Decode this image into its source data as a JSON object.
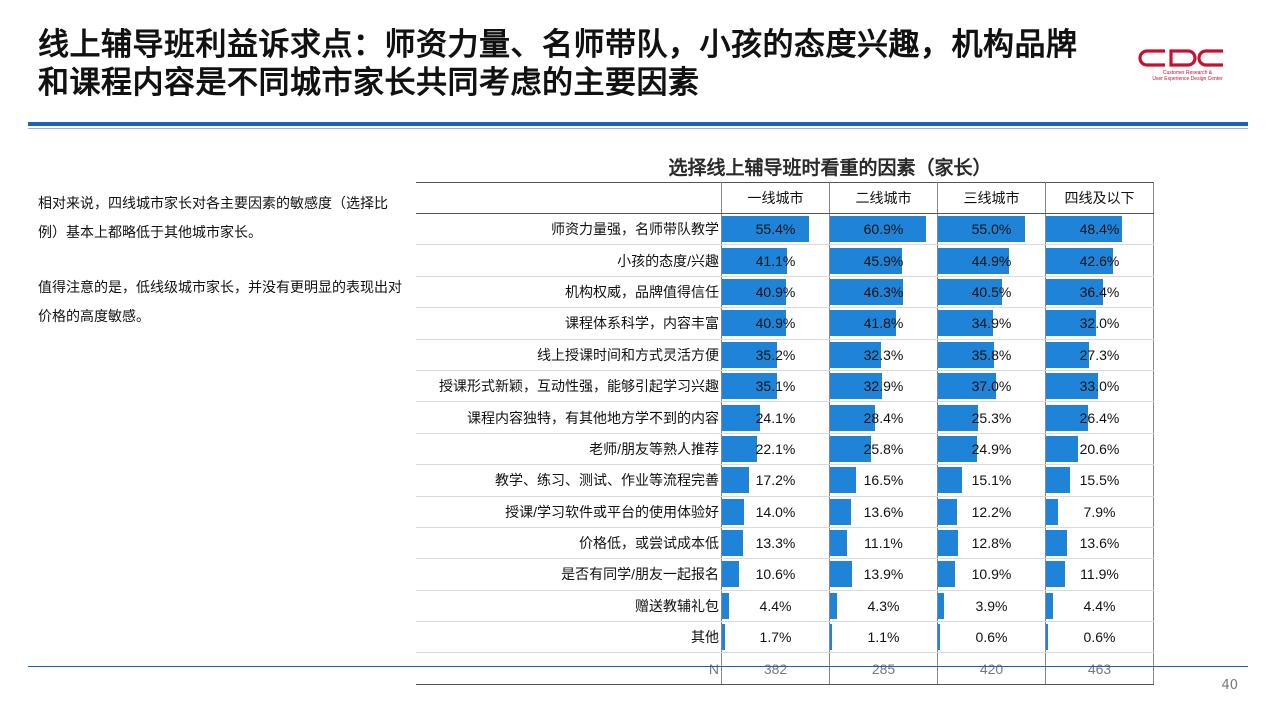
{
  "slide": {
    "title_line1": "线上辅导班利益诉求点：师资力量、名师带队，小孩的态度兴趣，机构品牌",
    "title_line2": "和课程内容是不同城市家长共同考虑的主要因素",
    "logo_text": "CDC",
    "logo_sub1": "Customer Research &",
    "logo_sub2": "User Experience Design Center",
    "note1": "相对来说，四线城市家长对各主要因素的敏感度（选择比例）基本上都略低于其他城市家长。",
    "note2": "值得注意的是，低线级城市家长，并没有更明显的表现出对价格的高度敏感。",
    "page_number": "40",
    "bar_color": "#1f84d8",
    "accent_color": "#1b5fbf",
    "logo_color": "#c8102e"
  },
  "chart_data": {
    "type": "table",
    "title": "选择线上辅导班时看重的因素（家长）",
    "columns": [
      "一线城市",
      "二线城市",
      "三线城市",
      "四线及以下"
    ],
    "rows": [
      {
        "label": "师资力量强，名师带队教学",
        "values": [
          55.4,
          60.9,
          55.0,
          48.4
        ]
      },
      {
        "label": "小孩的态度/兴趣",
        "values": [
          41.1,
          45.9,
          44.9,
          42.6
        ]
      },
      {
        "label": "机构权威，品牌值得信任",
        "values": [
          40.9,
          46.3,
          40.5,
          36.4
        ]
      },
      {
        "label": "课程体系科学，内容丰富",
        "values": [
          40.9,
          41.8,
          34.9,
          32.0
        ]
      },
      {
        "label": "线上授课时间和方式灵活方便",
        "values": [
          35.2,
          32.3,
          35.8,
          27.3
        ]
      },
      {
        "label": "授课形式新颖，互动性强，能够引起学习兴趣",
        "values": [
          35.1,
          32.9,
          37.0,
          33.0
        ]
      },
      {
        "label": "课程内容独特，有其他地方学不到的内容",
        "values": [
          24.1,
          28.4,
          25.3,
          26.4
        ]
      },
      {
        "label": "老师/朋友等熟人推荐",
        "values": [
          22.1,
          25.8,
          24.9,
          20.6
        ]
      },
      {
        "label": "教学、练习、测试、作业等流程完善",
        "values": [
          17.2,
          16.5,
          15.1,
          15.5
        ]
      },
      {
        "label": "授课/学习软件或平台的使用体验好",
        "values": [
          14.0,
          13.6,
          12.2,
          7.9
        ]
      },
      {
        "label": "价格低，或尝试成本低",
        "values": [
          13.3,
          11.1,
          12.8,
          13.6
        ]
      },
      {
        "label": "是否有同学/朋友一起报名",
        "values": [
          10.6,
          13.9,
          10.9,
          11.9
        ]
      },
      {
        "label": "赠送教辅礼包",
        "values": [
          4.4,
          4.3,
          3.9,
          4.4
        ]
      },
      {
        "label": "其他",
        "values": [
          1.7,
          1.1,
          0.6,
          0.6
        ]
      }
    ],
    "n_label": "N",
    "n_values": [
      382,
      285,
      420,
      463
    ],
    "value_suffix": "%",
    "bar_max": 60.9
  }
}
